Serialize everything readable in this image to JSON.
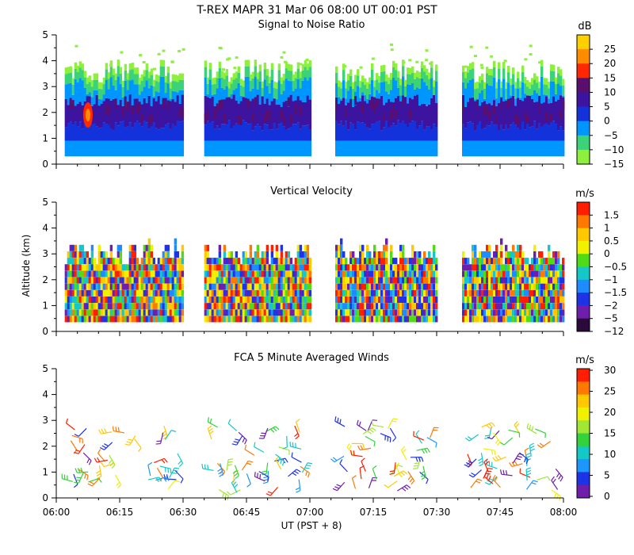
{
  "figure": {
    "title": "T-REX   MAPR 31 Mar 06   08:00 UT   00:01   PST",
    "x_axis": {
      "label": "UT  (PST + 8)",
      "tick_labels": [
        "06:00",
        "06:15",
        "06:30",
        "06:45",
        "07:00",
        "07:15",
        "07:30",
        "07:45",
        "08:00"
      ],
      "range_minutes": [
        0,
        120
      ]
    }
  },
  "chart_data": [
    {
      "type": "heatmap",
      "title": "Signal to Noise Ratio",
      "ylabel": "",
      "ylim": [
        0,
        5
      ],
      "y_ticks": [
        "0",
        "1",
        "2",
        "3",
        "4",
        "5"
      ],
      "colorbar": {
        "units": "dB",
        "labels": [
          "25",
          "20",
          "15",
          "10",
          "5",
          "0",
          "−5",
          "−10",
          "−15"
        ],
        "colors": [
          "#ffd000",
          "#ff8c00",
          "#ff2800",
          "#5a0f6e",
          "#3c14a0",
          "#1432dc",
          "#0096ff",
          "#3cd278",
          "#8cf03c"
        ]
      },
      "data_segments_minutes": [
        [
          2,
          30
        ],
        [
          35,
          60
        ],
        [
          66,
          90
        ],
        [
          96,
          120
        ]
      ]
    },
    {
      "type": "heatmap",
      "title": "Vertical Velocity",
      "ylabel": "Altitude (km)",
      "ylim": [
        0,
        5
      ],
      "y_ticks": [
        "0",
        "1",
        "2",
        "3",
        "4",
        "5"
      ],
      "colorbar": {
        "units": "m/s",
        "labels": [
          "1.5",
          "1",
          "0.5",
          "0",
          "−0.5",
          "−1",
          "−1.5",
          "−2",
          "−5",
          "−12"
        ],
        "colors": [
          "#ff1e00",
          "#ff7800",
          "#ffc800",
          "#f0f000",
          "#50dc14",
          "#14c8c8",
          "#1e8cff",
          "#1e32e6",
          "#6e1eaa",
          "#2a0a3a"
        ]
      },
      "data_segments_minutes": [
        [
          2,
          30
        ],
        [
          35,
          60
        ],
        [
          66,
          90
        ],
        [
          96,
          120
        ]
      ]
    },
    {
      "type": "scatter",
      "title": "FCA 5 Minute Averaged Winds",
      "ylabel": "",
      "ylim": [
        0,
        5
      ],
      "y_ticks": [
        "0",
        "1",
        "2",
        "3",
        "4",
        "5"
      ],
      "colorbar": {
        "units": "m/s",
        "labels": [
          "30",
          "25",
          "20",
          "15",
          "10",
          "5",
          "0"
        ],
        "colors": [
          "#ff1e00",
          "#ff7800",
          "#ffc800",
          "#f0f000",
          "#a0e632",
          "#32d23c",
          "#14c8c8",
          "#1e96ff",
          "#1e32e6",
          "#6e1eaa"
        ]
      },
      "data_segments_minutes": [
        [
          2,
          30
        ],
        [
          35,
          60
        ],
        [
          66,
          90
        ],
        [
          96,
          120
        ]
      ]
    }
  ]
}
